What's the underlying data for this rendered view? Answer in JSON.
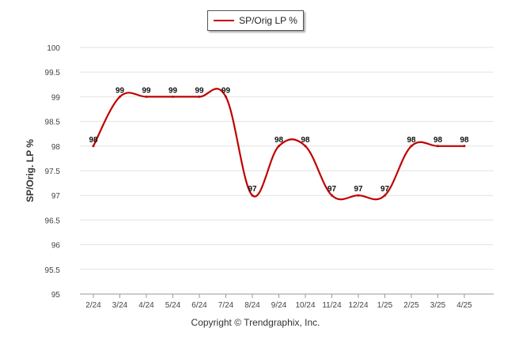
{
  "chart_data": {
    "type": "line",
    "title": "",
    "xlabel": "",
    "ylabel": "SP/Orig. LP %",
    "categories": [
      "2/24",
      "3/24",
      "4/24",
      "5/24",
      "6/24",
      "7/24",
      "8/24",
      "9/24",
      "10/24",
      "11/24",
      "12/24",
      "1/25",
      "2/25",
      "3/25",
      "4/25"
    ],
    "series": [
      {
        "name": "SP/Orig LP %",
        "values": [
          98,
          99,
          99,
          99,
          99,
          99,
          97,
          98,
          98,
          97,
          97,
          97,
          98,
          98,
          98
        ],
        "labels": [
          "98",
          "99",
          "99",
          "99",
          "99",
          "99",
          "97",
          "98",
          "98",
          "97",
          "97",
          "97",
          "98",
          "98",
          "98"
        ],
        "color": "#c00000"
      }
    ],
    "yticks": [
      "95",
      "95.5",
      "96",
      "96.5",
      "97",
      "97.5",
      "98",
      "98.5",
      "99",
      "99.5",
      "100"
    ],
    "ylim": [
      95,
      100
    ],
    "grid": true,
    "legend_position": "top-center"
  },
  "footer": {
    "copyright": "Copyright © Trendgraphix, Inc."
  }
}
